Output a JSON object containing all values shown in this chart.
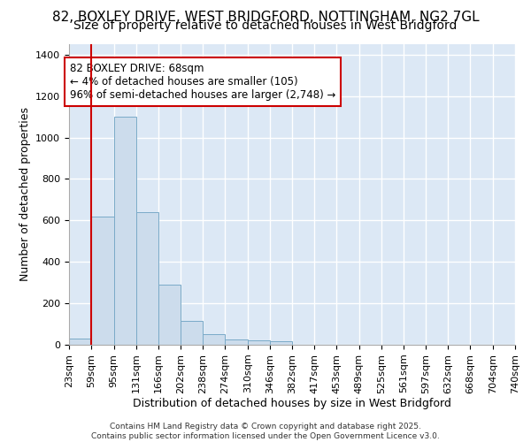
{
  "title1": "82, BOXLEY DRIVE, WEST BRIDGFORD, NOTTINGHAM, NG2 7GL",
  "title2": "Size of property relative to detached houses in West Bridgford",
  "xlabel": "Distribution of detached houses by size in West Bridgford",
  "ylabel": "Number of detached properties",
  "bar_color": "#ccdcec",
  "bar_edge_color": "#7aaac8",
  "background_color": "#dce8f5",
  "grid_color": "#ffffff",
  "annotation_box_color": "#cc0000",
  "annotation_text": "82 BOXLEY DRIVE: 68sqm\n← 4% of detached houses are smaller (105)\n96% of semi-detached houses are larger (2,748) →",
  "redline_x": 59,
  "bins": [
    23,
    59,
    95,
    131,
    166,
    202,
    238,
    274,
    310,
    346,
    382,
    417,
    453,
    489,
    525,
    561,
    597,
    632,
    668,
    704,
    740
  ],
  "bar_heights": [
    30,
    620,
    1100,
    640,
    290,
    115,
    50,
    25,
    20,
    15,
    0,
    0,
    0,
    0,
    0,
    0,
    0,
    0,
    0,
    0
  ],
  "ylim": [
    0,
    1450
  ],
  "yticks": [
    0,
    200,
    400,
    600,
    800,
    1000,
    1200,
    1400
  ],
  "footer_text": "Contains HM Land Registry data © Crown copyright and database right 2025.\nContains public sector information licensed under the Open Government Licence v3.0.",
  "title_fontsize": 11,
  "title2_fontsize": 10,
  "axis_label_fontsize": 9,
  "tick_fontsize": 8,
  "annotation_fontsize": 8.5
}
